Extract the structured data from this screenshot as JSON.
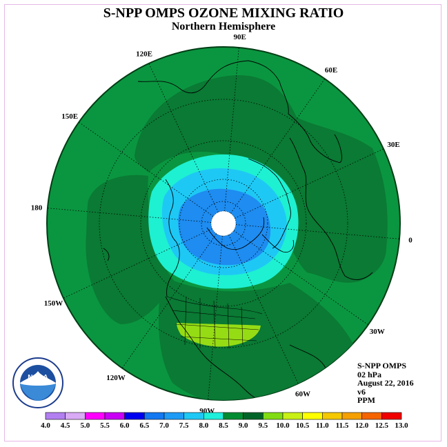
{
  "title": "S-NPP OMPS OZONE MIXING RATIO",
  "subtitle": "Northern Hemisphere",
  "info": {
    "instrument": "S-NPP OMPS",
    "level": "02 hPa",
    "date": "August 22, 2016",
    "version": "v6",
    "units": "PPM"
  },
  "longitude_labels": [
    {
      "text": "90E",
      "deg": 90
    },
    {
      "text": "60E",
      "deg": 60
    },
    {
      "text": "30E",
      "deg": 30
    },
    {
      "text": "0",
      "deg": 0
    },
    {
      "text": "30W",
      "deg": -30
    },
    {
      "text": "60W",
      "deg": -60
    },
    {
      "text": "90W",
      "deg": -90
    },
    {
      "text": "120W",
      "deg": -120
    },
    {
      "text": "150W",
      "deg": -150
    },
    {
      "text": "180",
      "deg": 180
    },
    {
      "text": "150E",
      "deg": 150
    },
    {
      "text": "120E",
      "deg": 120
    }
  ],
  "colorbar": {
    "ticks": [
      "4.0",
      "4.5",
      "5.0",
      "5.5",
      "6.0",
      "6.5",
      "7.0",
      "7.5",
      "8.0",
      "8.5",
      "9.0",
      "9.5",
      "10.0",
      "10.5",
      "11.0",
      "11.5",
      "12.0",
      "12.5",
      "13.0"
    ],
    "colors": [
      "#b27ff0",
      "#d9aaf5",
      "#ff00ff",
      "#c800f5",
      "#0000f0",
      "#1478f0",
      "#1e9bf5",
      "#1ec8f5",
      "#1ef0dc",
      "#008c32",
      "#006428",
      "#82dc14",
      "#c8f014",
      "#ffff00",
      "#f5c800",
      "#f5a000",
      "#f56400",
      "#f00000",
      "#8c5a3c"
    ]
  },
  "logo": {
    "text": "NOAA"
  }
}
